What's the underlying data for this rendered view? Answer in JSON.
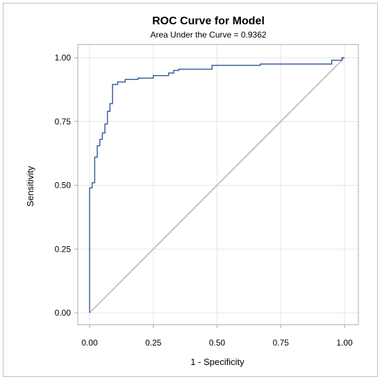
{
  "chart_data": {
    "type": "line",
    "title": "ROC Curve for Model",
    "subtitle": "Area Under the Curve = 0.9362",
    "xlabel": "1 - Specificity",
    "ylabel": "Sensitivity",
    "xlim": [
      0,
      1
    ],
    "ylim": [
      0,
      1
    ],
    "x_ticks": [
      "0.00",
      "0.25",
      "0.50",
      "0.75",
      "1.00"
    ],
    "y_ticks": [
      "0.00",
      "0.25",
      "0.50",
      "0.75",
      "1.00"
    ],
    "grid": true,
    "colors": {
      "curve": "#3a5f9c",
      "reference": "#a0a0a0",
      "grid": "#e6e6e6",
      "axis": "#a8a8a8"
    },
    "series": [
      {
        "type": "step",
        "x": [
          0,
          0,
          0.01,
          0.01,
          0.02,
          0.02,
          0.03,
          0.03,
          0.04,
          0.04,
          0.05,
          0.05,
          0.06,
          0.06,
          0.07,
          0.07,
          0.08,
          0.08,
          0.09,
          0.09,
          0.11,
          0.11,
          0.14,
          0.14,
          0.19,
          0.19,
          0.25,
          0.25,
          0.31,
          0.31,
          0.33,
          0.33,
          0.35,
          0.35,
          0.48,
          0.48,
          0.67,
          0.67,
          0.95,
          0.95,
          0.99,
          0.99,
          1.0
        ],
        "y": [
          0,
          0.49,
          0.49,
          0.51,
          0.51,
          0.61,
          0.61,
          0.655,
          0.655,
          0.68,
          0.68,
          0.705,
          0.705,
          0.74,
          0.74,
          0.79,
          0.79,
          0.82,
          0.82,
          0.895,
          0.895,
          0.905,
          0.905,
          0.915,
          0.915,
          0.92,
          0.92,
          0.93,
          0.93,
          0.94,
          0.94,
          0.95,
          0.95,
          0.955,
          0.955,
          0.97,
          0.97,
          0.975,
          0.975,
          0.99,
          0.99,
          1.0,
          1.0
        ]
      },
      {
        "type": "reference",
        "x": [
          0,
          1
        ],
        "y": [
          0,
          1
        ]
      }
    ]
  }
}
